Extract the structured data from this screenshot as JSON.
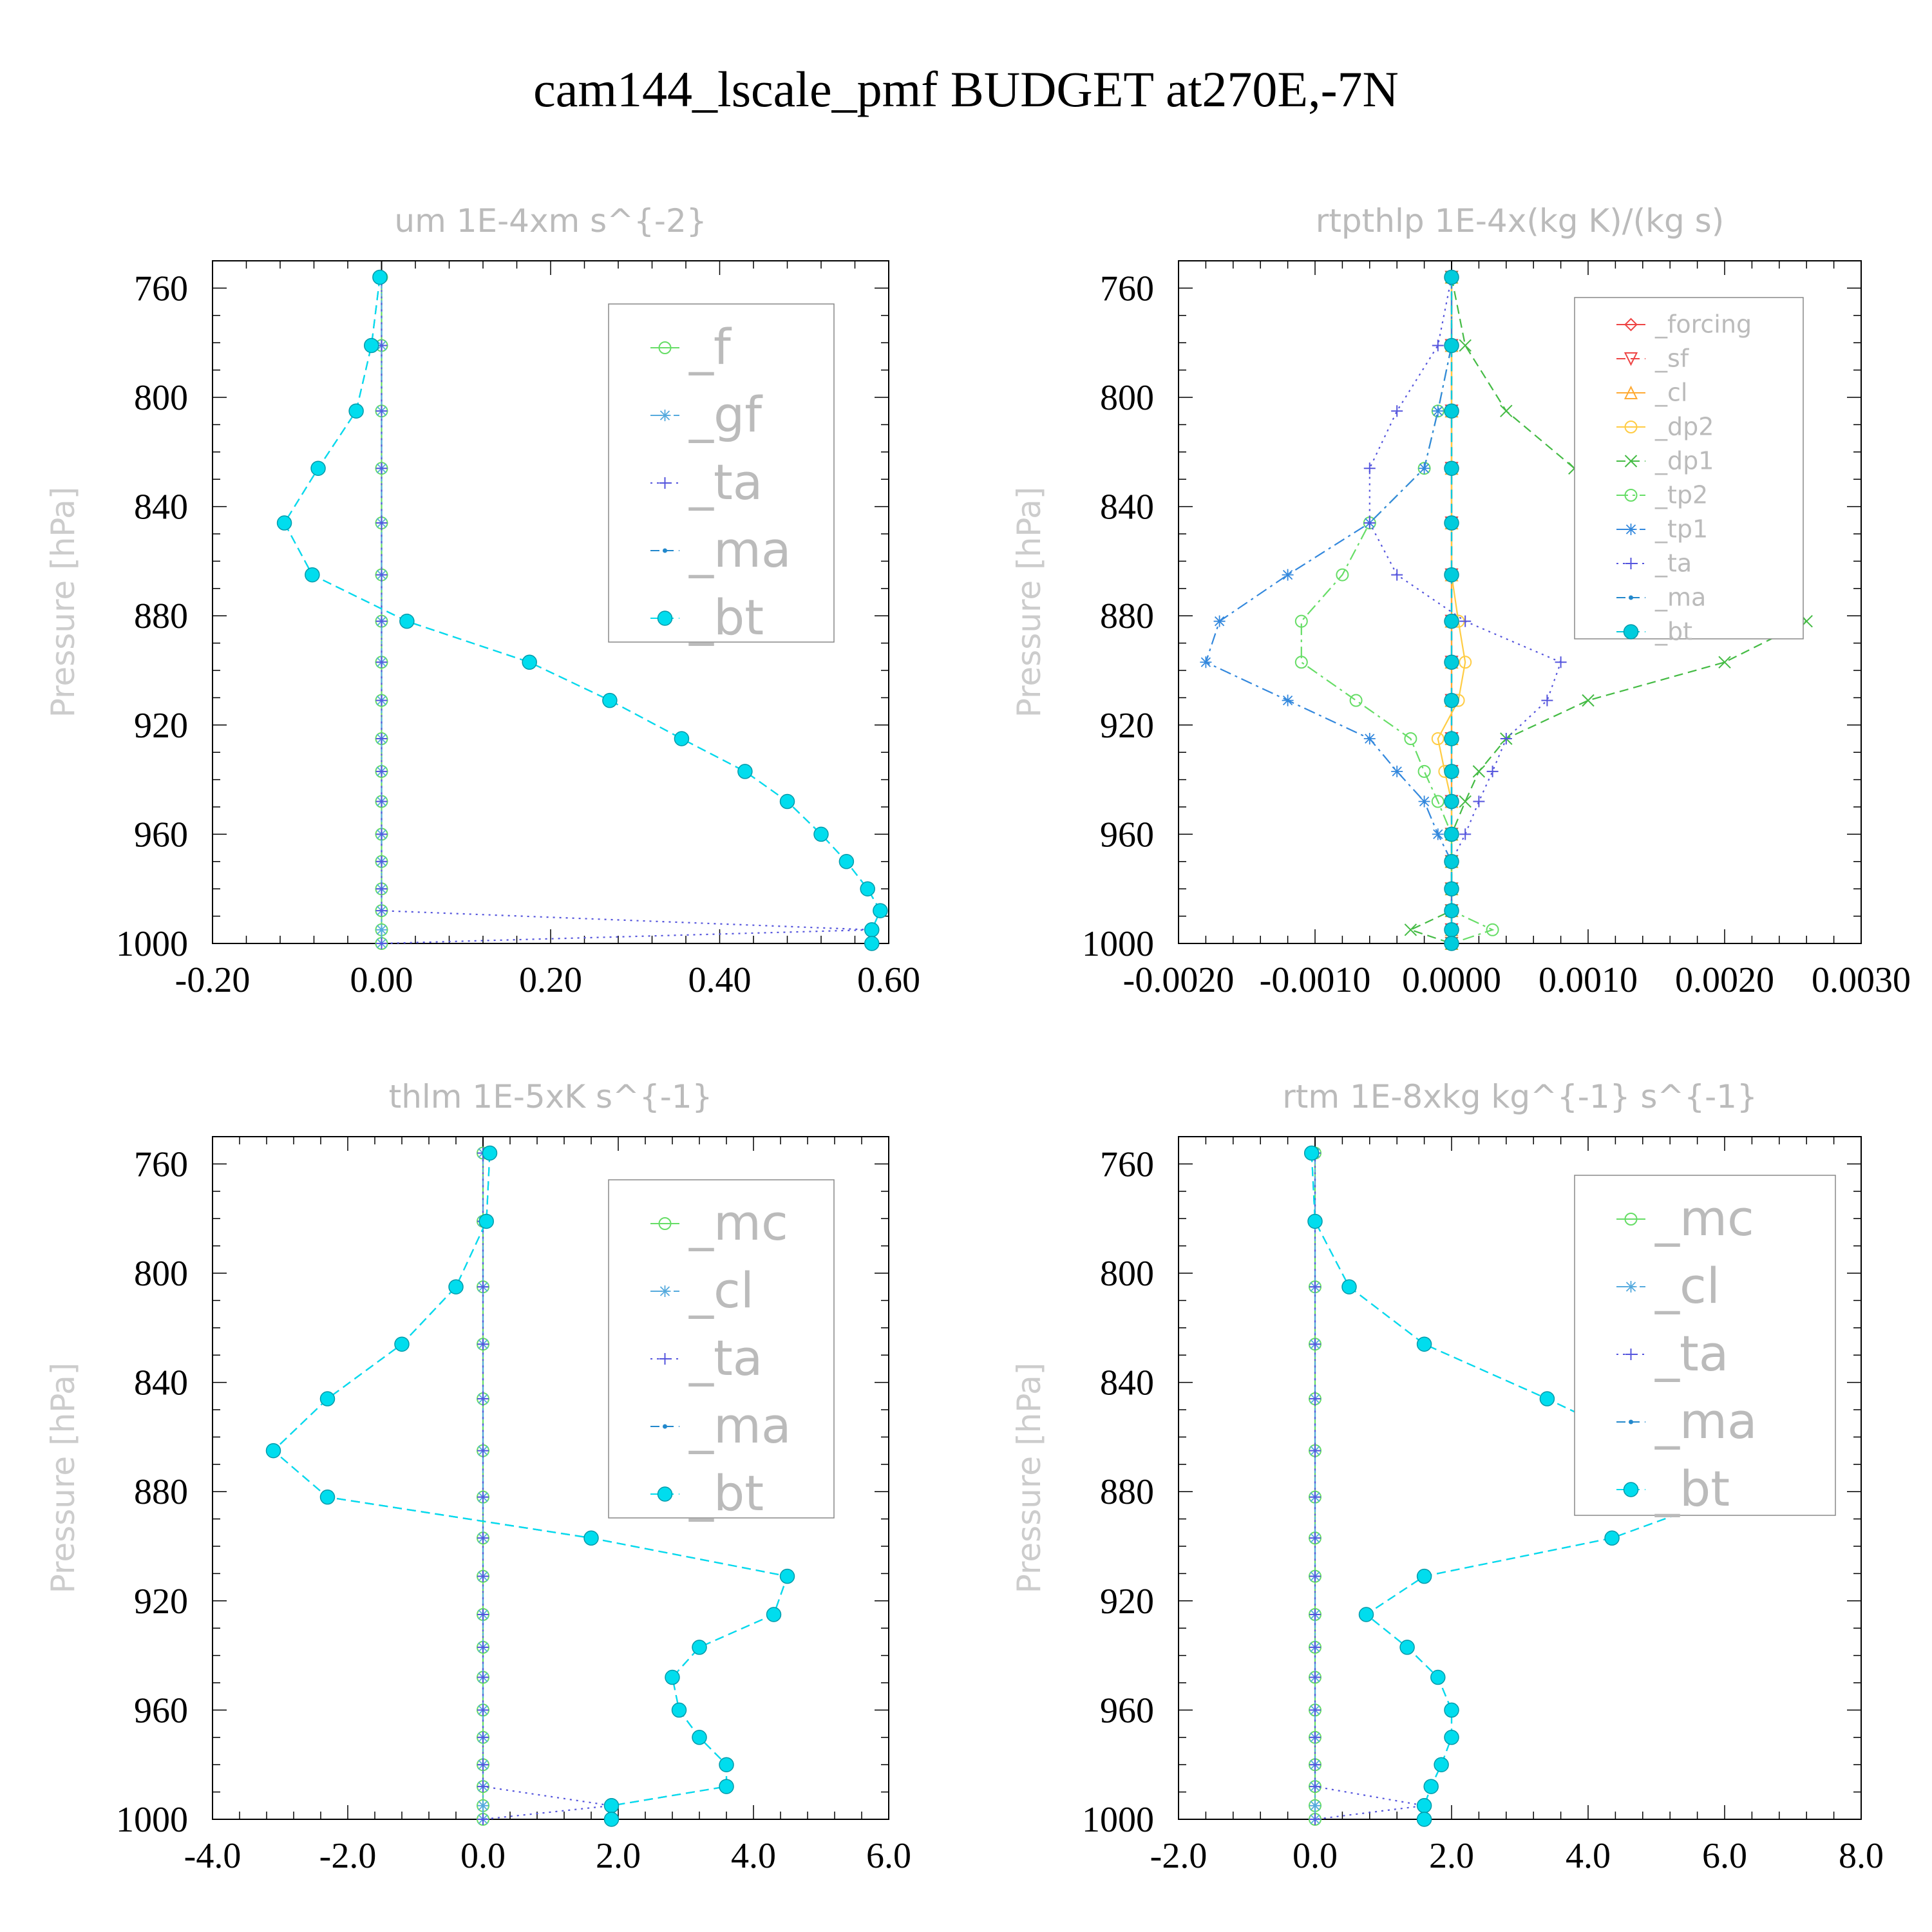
{
  "figure_title": "cam144_lscale_pmf  BUDGET at270E,-7N",
  "chart_data": [
    {
      "type": "line",
      "title": "um  1E-4xm s^{-2}",
      "ylabel": "Pressure [hPa]",
      "xlabel": "",
      "xlim": [
        -0.2,
        0.6
      ],
      "ylim": [
        1000,
        750
      ],
      "x_ticks": [
        "-0.20",
        "0.00",
        "0.20",
        "0.40",
        "0.60"
      ],
      "x_tick_values": [
        -0.2,
        0,
        0.2,
        0.4,
        0.6
      ],
      "y_ticks": [
        "760",
        "800",
        "840",
        "880",
        "920",
        "960",
        "1000"
      ],
      "y_tick_values": [
        760,
        800,
        840,
        880,
        920,
        960,
        1000
      ],
      "legend_position": "top-right",
      "legend_font": 76,
      "p": [
        756,
        781,
        805,
        826,
        846,
        865,
        882,
        897,
        911,
        925,
        937,
        948,
        960,
        970,
        980,
        988,
        995,
        1000
      ],
      "series": [
        {
          "name": "_f",
          "color": "#66dd66",
          "marker": "circle",
          "dash": "solid",
          "values": [
            0,
            0,
            0,
            0,
            0,
            0,
            0,
            0,
            0,
            0,
            0,
            0,
            0,
            0,
            0,
            0,
            0,
            0
          ]
        },
        {
          "name": "_gf",
          "color": "#55aadd",
          "marker": "asterisk",
          "dash": "dashdot",
          "values": [
            0,
            0,
            0,
            0,
            0,
            0,
            0,
            0,
            0,
            0,
            0,
            0,
            0,
            0,
            0,
            0,
            0,
            0
          ]
        },
        {
          "name": "_ta",
          "color": "#5555dd",
          "marker": "plus",
          "dash": "dotted",
          "values": [
            0,
            0,
            0,
            0,
            0,
            0,
            0,
            0,
            0,
            0,
            0,
            0,
            0,
            0,
            0,
            0,
            0.58,
            0
          ]
        },
        {
          "name": "_ma",
          "color": "#2288cc",
          "marker": "dot",
          "dash": "dashed",
          "values": [
            -0.002,
            -0.012,
            -0.03,
            -0.075,
            -0.115,
            -0.082,
            0.03,
            0.175,
            0.27,
            0.355,
            0.43,
            0.48,
            0.52,
            0.55,
            0.575,
            0.59,
            0.58,
            0.58
          ]
        },
        {
          "name": "_bt",
          "color": "#00ddee",
          "marker": "filled-circle",
          "dash": "dashed",
          "values": [
            -0.002,
            -0.012,
            -0.03,
            -0.075,
            -0.115,
            -0.082,
            0.03,
            0.175,
            0.27,
            0.355,
            0.43,
            0.48,
            0.52,
            0.55,
            0.575,
            0.59,
            0.58,
            0.58
          ]
        }
      ]
    },
    {
      "type": "line",
      "title": "rtpthlp  1E-4x(kg K)/(kg s)",
      "ylabel": "Pressure [hPa]",
      "xlabel": "",
      "xlim": [
        -0.002,
        0.003
      ],
      "ylim": [
        1000,
        750
      ],
      "x_ticks": [
        "-0.0020",
        "-0.0010",
        "0.0000",
        "0.0010",
        "0.0020",
        "0.0030"
      ],
      "x_tick_values": [
        -0.002,
        -0.001,
        0,
        0.001,
        0.002,
        0.003
      ],
      "y_ticks": [
        "760",
        "800",
        "840",
        "880",
        "920",
        "960",
        "1000"
      ],
      "y_tick_values": [
        760,
        800,
        840,
        880,
        920,
        960,
        1000
      ],
      "legend_position": "top-right",
      "legend_font": 38,
      "p": [
        756,
        781,
        805,
        826,
        846,
        865,
        882,
        897,
        911,
        925,
        937,
        948,
        960,
        970,
        980,
        988,
        995,
        1000
      ],
      "series": [
        {
          "name": "_forcing",
          "color": "#ee4444",
          "marker": "diamond",
          "dash": "solid",
          "values": [
            0,
            0,
            0,
            0,
            0,
            0,
            0,
            0,
            0,
            0,
            0,
            0,
            0,
            0,
            0,
            0,
            0,
            0
          ]
        },
        {
          "name": "_sf",
          "color": "#ee4444",
          "marker": "triangle-down",
          "dash": "dashed",
          "values": [
            0,
            0,
            0,
            0,
            0,
            0,
            0,
            0,
            0,
            0,
            0,
            0,
            0,
            0,
            0,
            0,
            0,
            0
          ]
        },
        {
          "name": "_cl",
          "color": "#ffaa33",
          "marker": "triangle-up",
          "dash": "solid",
          "values": [
            0,
            0,
            0,
            0,
            0,
            0,
            0,
            0,
            0,
            0,
            0,
            0,
            0,
            0,
            0,
            0,
            0,
            0
          ]
        },
        {
          "name": "_dp2",
          "color": "#ffcc44",
          "marker": "circle",
          "dash": "solid",
          "values": [
            0,
            0,
            0,
            0,
            0,
            0,
            5e-05,
            0.0001,
            5e-05,
            -0.0001,
            -5e-05,
            0,
            0,
            0,
            0,
            0,
            0,
            0
          ]
        },
        {
          "name": "_dp1",
          "color": "#44bb44",
          "marker": "x",
          "dash": "dashed",
          "values": [
            0,
            0.0001,
            0.0004,
            0.0009,
            0.0016,
            0.0023,
            0.0026,
            0.002,
            0.001,
            0.0004,
            0.0002,
            0.0001,
            0,
            0,
            0,
            0,
            -0.0003,
            0
          ]
        },
        {
          "name": "_tp2",
          "color": "#66dd66",
          "marker": "circle",
          "dash": "dashdot",
          "values": [
            0,
            0,
            -0.0001,
            -0.0002,
            -0.0006,
            -0.0008,
            -0.0011,
            -0.0011,
            -0.0007,
            -0.0003,
            -0.0002,
            -0.0001,
            0,
            0,
            0,
            0,
            0.0003,
            0
          ]
        },
        {
          "name": "_tp1",
          "color": "#3388dd",
          "marker": "asterisk",
          "dash": "dashdot",
          "values": [
            0,
            0,
            -0.0001,
            -0.0002,
            -0.0006,
            -0.0012,
            -0.0017,
            -0.0018,
            -0.0012,
            -0.0006,
            -0.0004,
            -0.0002,
            -0.0001,
            0,
            0,
            0,
            0,
            0
          ]
        },
        {
          "name": "_ta",
          "color": "#5555dd",
          "marker": "plus",
          "dash": "dotted",
          "values": [
            0,
            -0.0001,
            -0.0004,
            -0.0006,
            -0.0006,
            -0.0004,
            0.0001,
            0.0008,
            0.0007,
            0.0004,
            0.0003,
            0.0002,
            0.0001,
            0,
            0,
            0,
            0,
            0
          ]
        },
        {
          "name": "_ma",
          "color": "#2288cc",
          "marker": "dot",
          "dash": "dashed",
          "values": [
            0,
            0,
            0,
            0,
            0,
            0,
            0,
            0,
            0,
            0,
            0,
            0,
            0,
            0,
            0,
            0,
            0,
            0
          ]
        },
        {
          "name": "_bt",
          "color": "#00ccdd",
          "marker": "filled-circle",
          "dash": "dashed",
          "values": [
            0,
            0,
            0,
            0,
            0,
            0,
            0,
            0,
            0,
            0,
            0,
            0,
            0,
            0,
            0,
            0,
            0,
            0
          ]
        }
      ]
    },
    {
      "type": "line",
      "title": "thlm  1E-5xK s^{-1}",
      "ylabel": "Pressure [hPa]",
      "xlabel": "",
      "xlim": [
        -4,
        6
      ],
      "ylim": [
        1000,
        750
      ],
      "x_ticks": [
        "-4.0",
        "-2.0",
        "0.0",
        "2.0",
        "4.0",
        "6.0"
      ],
      "x_tick_values": [
        -4,
        -2,
        0,
        2,
        4,
        6
      ],
      "y_ticks": [
        "760",
        "800",
        "840",
        "880",
        "920",
        "960",
        "1000"
      ],
      "y_tick_values": [
        760,
        800,
        840,
        880,
        920,
        960,
        1000
      ],
      "legend_position": "top-right",
      "legend_font": 76,
      "p": [
        756,
        781,
        805,
        826,
        846,
        865,
        882,
        897,
        911,
        925,
        937,
        948,
        960,
        970,
        980,
        988,
        995,
        1000
      ],
      "series": [
        {
          "name": "_mc",
          "color": "#66dd66",
          "marker": "circle",
          "dash": "solid",
          "values": [
            0,
            0,
            0,
            0,
            0,
            0,
            0,
            0,
            0,
            0,
            0,
            0,
            0,
            0,
            0,
            0,
            0,
            0
          ]
        },
        {
          "name": "_cl",
          "color": "#55aadd",
          "marker": "asterisk",
          "dash": "dashdot",
          "values": [
            0,
            0,
            0,
            0,
            0,
            0,
            0,
            0,
            0,
            0,
            0,
            0,
            0,
            0,
            0,
            0,
            0,
            0
          ]
        },
        {
          "name": "_ta",
          "color": "#5555dd",
          "marker": "plus",
          "dash": "dotted",
          "values": [
            0,
            0,
            0,
            0,
            0,
            0,
            0,
            0,
            0,
            0,
            0,
            0,
            0,
            0,
            0,
            0,
            1.9,
            0
          ]
        },
        {
          "name": "_ma",
          "color": "#2288cc",
          "marker": "dot",
          "dash": "dashed",
          "values": [
            0.1,
            0.05,
            -0.4,
            -1.2,
            -2.3,
            -3.1,
            -2.3,
            1.6,
            4.5,
            4.3,
            3.2,
            2.8,
            2.9,
            3.2,
            3.6,
            3.6,
            1.9,
            1.9
          ]
        },
        {
          "name": "_bt",
          "color": "#00ddee",
          "marker": "filled-circle",
          "dash": "dashed",
          "values": [
            0.1,
            0.05,
            -0.4,
            -1.2,
            -2.3,
            -3.1,
            -2.3,
            1.6,
            4.5,
            4.3,
            3.2,
            2.8,
            2.9,
            3.2,
            3.6,
            3.6,
            1.9,
            1.9
          ]
        }
      ]
    },
    {
      "type": "line",
      "title": "rtm  1E-8xkg kg^{-1} s^{-1}",
      "ylabel": "Pressure [hPa]",
      "xlabel": "",
      "xlim": [
        -2,
        8
      ],
      "ylim": [
        1000,
        750
      ],
      "x_ticks": [
        "-2.0",
        "0.0",
        "2.0",
        "4.0",
        "6.0",
        "8.0"
      ],
      "x_tick_values": [
        -2,
        0,
        2,
        4,
        6,
        8
      ],
      "y_ticks": [
        "760",
        "800",
        "840",
        "880",
        "920",
        "960",
        "1000"
      ],
      "y_tick_values": [
        760,
        800,
        840,
        880,
        920,
        960,
        1000
      ],
      "legend_position": "top-right",
      "legend_font": 76,
      "p": [
        756,
        781,
        805,
        826,
        846,
        865,
        882,
        897,
        911,
        925,
        937,
        948,
        960,
        970,
        980,
        988,
        995,
        1000
      ],
      "series": [
        {
          "name": "_mc",
          "color": "#66dd66",
          "marker": "circle",
          "dash": "solid",
          "values": [
            0,
            0,
            0,
            0,
            0,
            0,
            0,
            0,
            0,
            0,
            0,
            0,
            0,
            0,
            0,
            0,
            0,
            0
          ]
        },
        {
          "name": "_cl",
          "color": "#55aadd",
          "marker": "asterisk",
          "dash": "dashdot",
          "values": [
            0,
            0,
            0,
            0,
            0,
            0,
            0,
            0,
            0,
            0,
            0,
            0,
            0,
            0,
            0,
            0,
            0,
            0
          ]
        },
        {
          "name": "_ta",
          "color": "#5555dd",
          "marker": "plus",
          "dash": "dotted",
          "values": [
            0,
            0,
            0,
            0,
            0,
            0,
            0,
            0,
            0,
            0,
            0,
            0,
            0,
            0,
            0,
            0,
            1.6,
            0
          ]
        },
        {
          "name": "_ma",
          "color": "#2288cc",
          "marker": "dot",
          "dash": "dashed",
          "values": [
            -0.05,
            0,
            0.5,
            1.6,
            3.4,
            5.0,
            6.0,
            4.35,
            1.6,
            0.75,
            1.35,
            1.8,
            2.0,
            2.0,
            1.85,
            1.7,
            1.6,
            1.6
          ]
        },
        {
          "name": "_bt",
          "color": "#00ddee",
          "marker": "filled-circle",
          "dash": "dashed",
          "values": [
            -0.05,
            0,
            0.5,
            1.6,
            3.4,
            5.0,
            6.0,
            4.35,
            1.6,
            0.75,
            1.35,
            1.8,
            2.0,
            2.0,
            1.85,
            1.7,
            1.6,
            1.6
          ]
        }
      ]
    }
  ]
}
